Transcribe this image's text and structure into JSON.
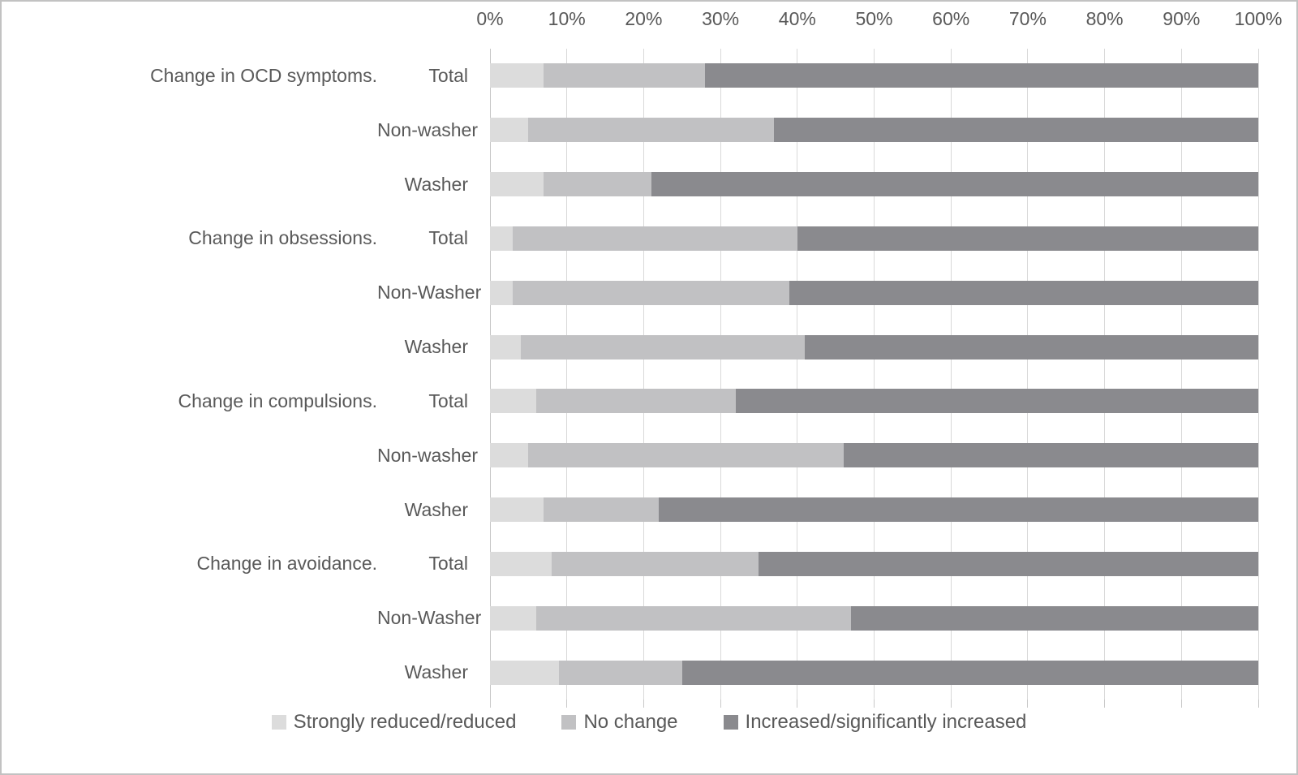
{
  "figure": {
    "background": "#ffffff",
    "border_color": "#c2c2c2",
    "text_color": "#595959",
    "gridline_color": "#d9d9d9"
  },
  "chart_data": {
    "type": "bar",
    "orientation": "horizontal",
    "stacked": true,
    "normalized": "100%",
    "title": "",
    "xlabel": "",
    "ylabel": "",
    "xlim": [
      0,
      100
    ],
    "grid": true,
    "legend_position": "bottom",
    "x_tick_labels": [
      "0%",
      "10%",
      "20%",
      "30%",
      "40%",
      "50%",
      "60%",
      "70%",
      "80%",
      "90%",
      "100%"
    ],
    "series": [
      {
        "name": "Strongly reduced/reduced",
        "color": "#dcdcdc"
      },
      {
        "name": "No change",
        "color": "#c1c1c3"
      },
      {
        "name": "Increased/significantly increased",
        "color": "#8a8a8e"
      }
    ],
    "categories": [
      {
        "group": "Change in OCD symptoms.",
        "label": "Total"
      },
      {
        "group": "",
        "label": "Non-washer"
      },
      {
        "group": "",
        "label": "Washer"
      },
      {
        "group": "Change in obsessions.",
        "label": "Total"
      },
      {
        "group": "",
        "label": "Non-Washer"
      },
      {
        "group": "",
        "label": "Washer"
      },
      {
        "group": "Change in compulsions.",
        "label": "Total"
      },
      {
        "group": "",
        "label": "Non-washer"
      },
      {
        "group": "",
        "label": "Washer"
      },
      {
        "group": "Change in avoidance.",
        "label": "Total"
      },
      {
        "group": "",
        "label": "Non-Washer"
      },
      {
        "group": "",
        "label": "Washer"
      }
    ],
    "values_percent": [
      [
        7,
        21,
        72
      ],
      [
        5,
        32,
        63
      ],
      [
        7,
        14,
        79
      ],
      [
        3,
        37,
        60
      ],
      [
        3,
        36,
        61
      ],
      [
        4,
        37,
        59
      ],
      [
        6,
        26,
        68
      ],
      [
        5,
        41,
        54
      ],
      [
        7,
        15,
        78
      ],
      [
        8,
        27,
        65
      ],
      [
        6,
        41,
        53
      ],
      [
        9,
        16,
        75
      ]
    ]
  }
}
